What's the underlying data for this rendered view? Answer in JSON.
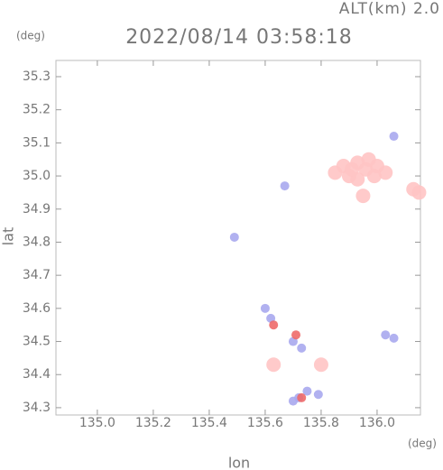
{
  "chart_data": {
    "type": "scatter",
    "title": "2022/08/14 03:58:18",
    "annotation": "ALT(km) 2.0",
    "y_unit": "(deg)",
    "x_unit": "(deg)",
    "xlabel": "lon",
    "ylabel": "lat",
    "xlim": [
      134.852,
      136.155
    ],
    "ylim": [
      34.278,
      35.349
    ],
    "xticks": [
      {
        "value": 135,
        "label": "135.0"
      },
      135.2,
      135.4,
      135.6,
      135.8,
      {
        "value": 136,
        "label": "136.0"
      }
    ],
    "yticks": [
      34.3,
      34.4,
      34.5,
      34.6,
      34.7,
      34.8,
      34.9,
      {
        "value": 35,
        "label": "35.0"
      },
      35.1,
      35.2,
      35.3
    ],
    "series": [
      {
        "color": "#ffc4c4",
        "x": [
          135.85,
          135.88,
          135.9,
          135.93,
          135.96,
          136.0,
          136.03,
          135.93,
          135.95,
          136.13,
          136.15,
          135.97,
          135.91,
          135.99,
          135.63,
          135.8
        ],
        "values": [
          35.01,
          35.03,
          35.0,
          35.04,
          35.02,
          35.03,
          35.01,
          34.99,
          34.94,
          34.96,
          34.95,
          35.05,
          35.02,
          35.0,
          34.43,
          34.43
        ]
      },
      {
        "color": "#a8a8ee",
        "x": [
          135.67,
          135.49,
          135.6,
          135.62,
          135.7,
          135.73,
          136.03,
          136.06,
          135.75,
          135.79,
          135.72,
          135.7,
          136.06
        ],
        "values": [
          34.97,
          34.815,
          34.6,
          34.57,
          34.5,
          34.48,
          34.52,
          34.51,
          34.35,
          34.34,
          34.33,
          34.32,
          35.12
        ]
      },
      {
        "color": "#ee6a6a",
        "x": [
          135.73,
          135.71,
          135.63
        ],
        "values": [
          34.33,
          34.52,
          34.55
        ]
      }
    ]
  }
}
